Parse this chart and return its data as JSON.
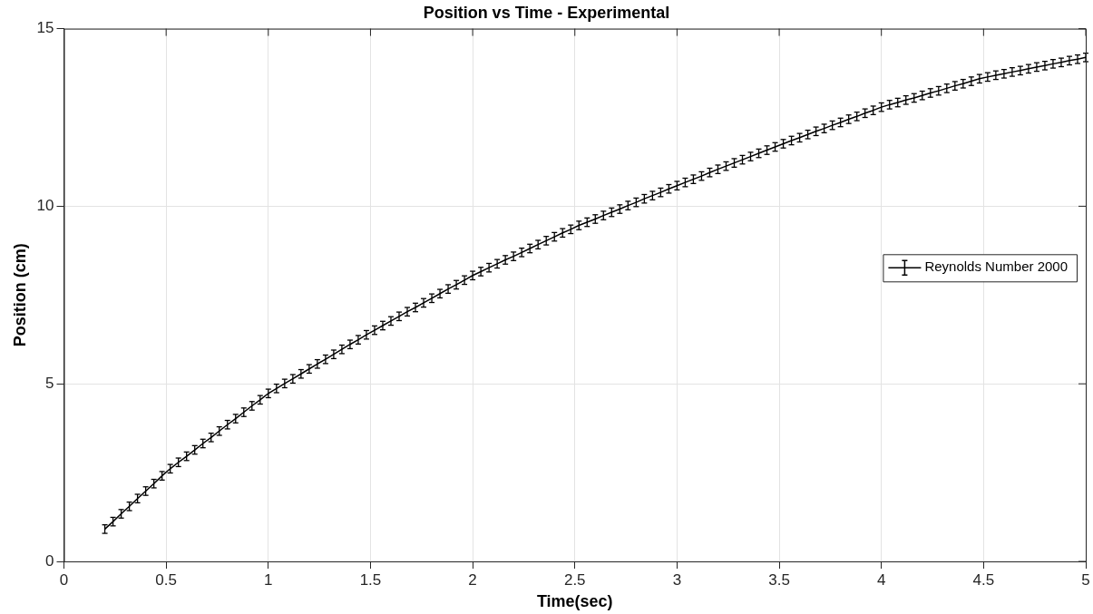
{
  "chart_data": {
    "type": "line",
    "title": "Position vs Time - Experimental",
    "xlabel": "Time(sec)",
    "ylabel": "Position (cm)",
    "xlim": [
      0,
      5
    ],
    "xticks": [
      0,
      0.5,
      1,
      1.5,
      2,
      2.5,
      3,
      3.5,
      4,
      4.5,
      5
    ],
    "ylim": [
      0,
      15
    ],
    "yticks": [
      0,
      5,
      10,
      15
    ],
    "grid": true,
    "legend": "right",
    "line_style": "solid",
    "series": [
      {
        "name": "Reynolds Number 2000",
        "color": "#000000",
        "x": [
          0.2,
          0.24,
          0.28,
          0.32,
          0.36,
          0.4,
          0.44,
          0.48,
          0.52,
          0.56,
          0.6,
          0.64,
          0.68,
          0.72,
          0.76,
          0.8,
          0.84,
          0.88,
          0.92,
          0.96,
          1.0,
          1.04,
          1.08,
          1.12,
          1.16,
          1.2,
          1.24,
          1.28,
          1.32,
          1.36,
          1.4,
          1.44,
          1.48,
          1.52,
          1.56,
          1.6,
          1.64,
          1.68,
          1.72,
          1.76,
          1.8,
          1.84,
          1.88,
          1.92,
          1.96,
          2.0,
          2.04,
          2.08,
          2.12,
          2.16,
          2.2,
          2.24,
          2.28,
          2.32,
          2.36,
          2.4,
          2.44,
          2.48,
          2.52,
          2.56,
          2.6,
          2.64,
          2.68,
          2.72,
          2.76,
          2.8,
          2.84,
          2.88,
          2.92,
          2.96,
          3.0,
          3.04,
          3.08,
          3.12,
          3.16,
          3.2,
          3.24,
          3.28,
          3.32,
          3.36,
          3.4,
          3.44,
          3.48,
          3.52,
          3.56,
          3.6,
          3.64,
          3.68,
          3.72,
          3.76,
          3.8,
          3.84,
          3.88,
          3.92,
          3.96,
          4.0,
          4.04,
          4.08,
          4.12,
          4.16,
          4.2,
          4.24,
          4.28,
          4.32,
          4.36,
          4.4,
          4.44,
          4.48,
          4.52,
          4.56,
          4.6,
          4.64,
          4.68,
          4.72,
          4.76,
          4.8,
          4.84,
          4.88,
          4.92,
          4.96,
          5.0
        ],
        "values": [
          0.91,
          1.12,
          1.34,
          1.55,
          1.77,
          1.98,
          2.19,
          2.41,
          2.61,
          2.79,
          2.96,
          3.14,
          3.32,
          3.49,
          3.67,
          3.85,
          4.02,
          4.2,
          4.38,
          4.55,
          4.73,
          4.87,
          5.01,
          5.14,
          5.28,
          5.42,
          5.56,
          5.69,
          5.83,
          5.97,
          6.11,
          6.24,
          6.38,
          6.51,
          6.64,
          6.77,
          6.9,
          7.03,
          7.15,
          7.28,
          7.41,
          7.54,
          7.67,
          7.79,
          7.92,
          8.05,
          8.16,
          8.27,
          8.38,
          8.49,
          8.59,
          8.7,
          8.81,
          8.92,
          9.03,
          9.14,
          9.25,
          9.35,
          9.46,
          9.55,
          9.64,
          9.74,
          9.83,
          9.92,
          10.02,
          10.11,
          10.21,
          10.3,
          10.39,
          10.49,
          10.58,
          10.67,
          10.76,
          10.85,
          10.95,
          11.04,
          11.13,
          11.22,
          11.31,
          11.4,
          11.49,
          11.58,
          11.67,
          11.76,
          11.85,
          11.93,
          12.02,
          12.11,
          12.19,
          12.28,
          12.36,
          12.45,
          12.53,
          12.62,
          12.7,
          12.79,
          12.86,
          12.92,
          12.99,
          13.05,
          13.12,
          13.19,
          13.25,
          13.32,
          13.39,
          13.45,
          13.52,
          13.59,
          13.64,
          13.69,
          13.73,
          13.78,
          13.82,
          13.87,
          13.92,
          13.96,
          14.01,
          14.05,
          14.1,
          14.14,
          14.19
        ],
        "errors": [
          0.12,
          0.12,
          0.12,
          0.12,
          0.12,
          0.12,
          0.12,
          0.12,
          0.12,
          0.12,
          0.12,
          0.12,
          0.12,
          0.12,
          0.12,
          0.12,
          0.12,
          0.12,
          0.12,
          0.12,
          0.12,
          0.12,
          0.12,
          0.12,
          0.12,
          0.12,
          0.12,
          0.12,
          0.12,
          0.12,
          0.12,
          0.12,
          0.12,
          0.12,
          0.12,
          0.12,
          0.12,
          0.12,
          0.12,
          0.12,
          0.12,
          0.12,
          0.12,
          0.12,
          0.12,
          0.12,
          0.12,
          0.12,
          0.12,
          0.12,
          0.12,
          0.12,
          0.12,
          0.12,
          0.12,
          0.12,
          0.12,
          0.12,
          0.12,
          0.12,
          0.12,
          0.12,
          0.12,
          0.12,
          0.12,
          0.12,
          0.12,
          0.12,
          0.12,
          0.12,
          0.12,
          0.12,
          0.12,
          0.12,
          0.12,
          0.12,
          0.12,
          0.12,
          0.12,
          0.12,
          0.12,
          0.12,
          0.12,
          0.12,
          0.12,
          0.12,
          0.12,
          0.12,
          0.12,
          0.12,
          0.12,
          0.12,
          0.12,
          0.12,
          0.12,
          0.12,
          0.12,
          0.12,
          0.12,
          0.12,
          0.12,
          0.12,
          0.12,
          0.12,
          0.12,
          0.12,
          0.12,
          0.12,
          0.12,
          0.12,
          0.12,
          0.12,
          0.12,
          0.12,
          0.12,
          0.12,
          0.12,
          0.12,
          0.12,
          0.12,
          0.12
        ]
      }
    ]
  }
}
